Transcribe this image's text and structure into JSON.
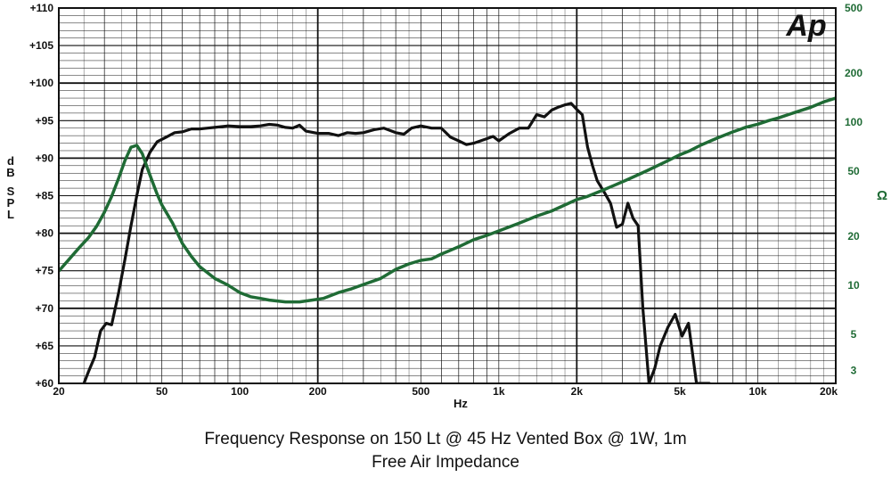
{
  "chart_data": {
    "type": "line",
    "title": "Frequency Response on 150 Lt @ 45 Hz Vented Box @ 1W, 1m",
    "subtitle": "Free Air Impedance",
    "xlabel": "Hz",
    "ylabel": "dB SPL",
    "y2label": "Ω",
    "logo": "Ap",
    "x_scale": "log",
    "xlim": [
      20,
      20000
    ],
    "ylim": [
      60,
      110
    ],
    "y2_scale": "log",
    "y2lim": [
      2.5,
      500
    ],
    "grid": true,
    "x_tick_labels": [
      "20",
      "50",
      "100",
      "200",
      "500",
      "1k",
      "2k",
      "5k",
      "10k",
      "20k"
    ],
    "x_tick_values": [
      20,
      50,
      100,
      200,
      500,
      1000,
      2000,
      5000,
      10000,
      20000
    ],
    "y_tick_labels": [
      "+60",
      "+65",
      "+70",
      "+75",
      "+80",
      "+85",
      "+90",
      "+95",
      "+100",
      "+105",
      "+110"
    ],
    "y_tick_values": [
      60,
      65,
      70,
      75,
      80,
      85,
      90,
      95,
      100,
      105,
      110
    ],
    "y2_tick_labels": [
      "3",
      "5",
      "10",
      "20",
      "50",
      "100",
      "200",
      "500"
    ],
    "y2_tick_values": [
      3,
      5,
      10,
      20,
      50,
      100,
      200,
      500
    ],
    "colors": {
      "spl": "#111111",
      "impedance": "#1f6b35",
      "right_axis": "#1f6b35"
    },
    "series": [
      {
        "axis": "left",
        "x": [
          25,
          26,
          27.5,
          29,
          30.5,
          32,
          34,
          36,
          38,
          40,
          42,
          45,
          48,
          52,
          56,
          60,
          65,
          70,
          75,
          80,
          90,
          100,
          110,
          120,
          130,
          140,
          150,
          160,
          170,
          180,
          200,
          220,
          240,
          260,
          280,
          300,
          330,
          360,
          400,
          430,
          460,
          500,
          550,
          600,
          650,
          700,
          750,
          800,
          850,
          900,
          950,
          1000,
          1100,
          1200,
          1300,
          1400,
          1500,
          1600,
          1700,
          1800,
          1900,
          2000,
          2100,
          2200,
          2300,
          2400,
          2550,
          2700,
          2850,
          3000,
          3150,
          3300,
          3450,
          3600,
          3800,
          4000,
          4200,
          4500,
          4800,
          5100,
          5400,
          5800,
          6200,
          6500
        ],
        "y": [
          60,
          61.5,
          63.5,
          67,
          68,
          67.8,
          72,
          76.5,
          81,
          85,
          88.5,
          90.8,
          92.2,
          92.8,
          93.4,
          93.5,
          93.9,
          93.9,
          94,
          94.1,
          94.3,
          94.2,
          94.2,
          94.3,
          94.5,
          94.4,
          94.1,
          94,
          94.4,
          93.6,
          93.3,
          93.3,
          93,
          93.4,
          93.3,
          93.4,
          93.8,
          94,
          93.4,
          93.2,
          94,
          94.3,
          94,
          94,
          92.8,
          92.3,
          91.8,
          92,
          92.3,
          92.6,
          92.9,
          92.3,
          93.3,
          94,
          94,
          95.8,
          95.5,
          96.4,
          96.8,
          97.1,
          97.3,
          96.5,
          95.8,
          91.5,
          89,
          87,
          85.5,
          84,
          80.8,
          81.2,
          84,
          82,
          81,
          70,
          60,
          62,
          65,
          67.5,
          69.2,
          66.3,
          68,
          60,
          60,
          60
        ]
      },
      {
        "axis": "right",
        "x": [
          20,
          22,
          24,
          26,
          28,
          30,
          32,
          34,
          36,
          38,
          40,
          42,
          44,
          46,
          48,
          50,
          55,
          60,
          65,
          70,
          80,
          90,
          100,
          110,
          120,
          130,
          150,
          170,
          190,
          210,
          240,
          270,
          300,
          350,
          400,
          450,
          500,
          550,
          600,
          700,
          800,
          900,
          1000,
          1200,
          1400,
          1600,
          1800,
          2000,
          2200,
          2500,
          2800,
          3100,
          3400,
          3700,
          4000,
          4500,
          5000,
          5500,
          6000,
          7000,
          8000,
          9000,
          10000,
          11000,
          12000,
          14000,
          16000,
          18000,
          20000
        ],
        "y": [
          12.2,
          14.5,
          17,
          19.5,
          23,
          28,
          35,
          45,
          58,
          70,
          72,
          64,
          52,
          43,
          36,
          31,
          24,
          18,
          15,
          13,
          11,
          10,
          9,
          8.5,
          8.3,
          8.1,
          7.9,
          7.9,
          8.1,
          8.3,
          9,
          9.5,
          10.1,
          11,
          12.5,
          13.5,
          14.2,
          14.5,
          15.5,
          17.2,
          19,
          20.2,
          21.5,
          24,
          26.5,
          28.5,
          31,
          33.5,
          35,
          38,
          41,
          44,
          47,
          50,
          53,
          58,
          63,
          67,
          72,
          80,
          87,
          93,
          97,
          102,
          106,
          115,
          123,
          133,
          140
        ]
      }
    ]
  }
}
